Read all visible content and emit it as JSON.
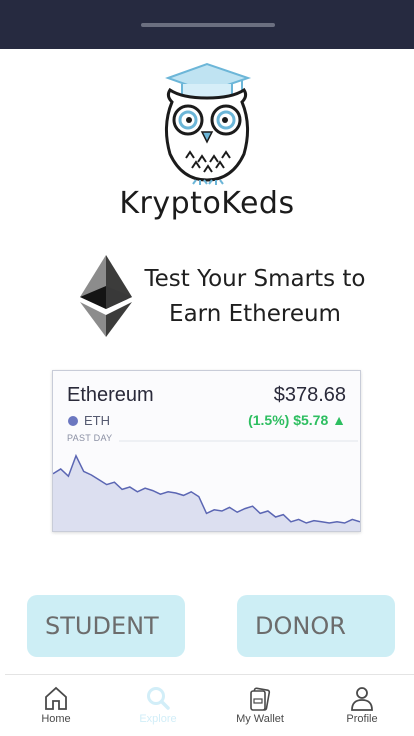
{
  "brand": {
    "name": "KryptoKeds"
  },
  "tagline": {
    "line1": "Test Your Smarts to",
    "line2": "Earn Ethereum"
  },
  "price_card": {
    "coin_name": "Ethereum",
    "price": "$378.68",
    "ticker": "ETH",
    "change": "(1.5%) $5.78 ▲",
    "period": "PAST DAY",
    "line_color": "#5b66b3",
    "fill_color": "#dcdff0"
  },
  "chart_data": {
    "type": "area",
    "title": "",
    "xlabel": "",
    "ylabel": "",
    "x": [
      0,
      1,
      2,
      3,
      4,
      5,
      6,
      7,
      8,
      9,
      10,
      11,
      12,
      13,
      14,
      15,
      16,
      17,
      18,
      19,
      20,
      21,
      22,
      23,
      24,
      25,
      26,
      27,
      28,
      29,
      30,
      31,
      32,
      33,
      34,
      35,
      36,
      37,
      38,
      39,
      40
    ],
    "values": [
      380.1,
      380.5,
      379.9,
      381.6,
      380.3,
      380.0,
      379.6,
      379.2,
      379.4,
      378.8,
      379.0,
      378.6,
      378.9,
      378.7,
      378.4,
      378.6,
      378.5,
      378.3,
      378.6,
      378.2,
      376.8,
      377.1,
      377.0,
      377.3,
      376.9,
      377.2,
      377.4,
      376.8,
      377.0,
      376.5,
      376.7,
      376.1,
      376.3,
      376.0,
      376.2,
      376.1,
      376.0,
      376.1,
      376.0,
      376.3,
      376.1
    ],
    "ylim": [
      375.5,
      382.5
    ],
    "grid": false,
    "legend": "none"
  },
  "buttons": {
    "student": "STUDENT",
    "donor": "DONOR"
  },
  "tabs": [
    {
      "label": "Home",
      "icon": "home-icon"
    },
    {
      "label": "Explore",
      "icon": "search-icon"
    },
    {
      "label": "My Wallet",
      "icon": "wallet-icon"
    },
    {
      "label": "Profile",
      "icon": "profile-icon"
    }
  ],
  "colors": {
    "status_bar": "#262a40",
    "button_bg": "#cdeef5",
    "active_tab": "#d2eef8",
    "positive": "#2dbe60"
  }
}
